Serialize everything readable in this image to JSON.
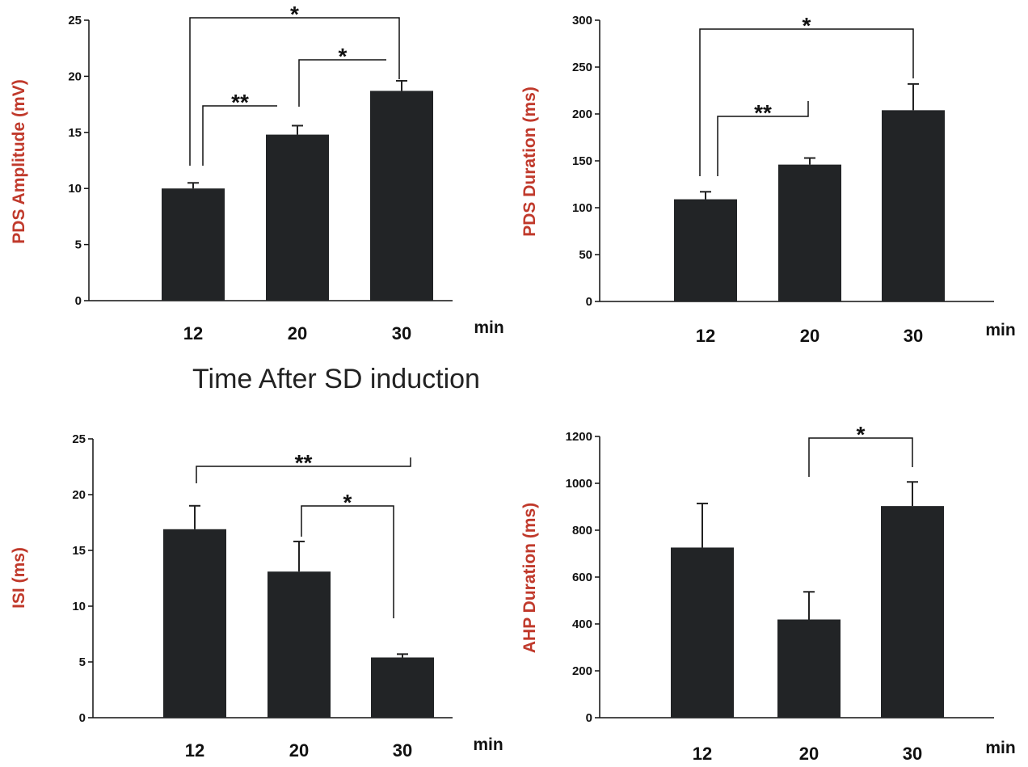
{
  "shared_caption": "Time After SD induction",
  "colors": {
    "bar": "#222426",
    "axis_title": "#c0392b",
    "text": "#111111"
  },
  "chart_data": [
    {
      "type": "bar",
      "ylabel": "PDS Amplitude (mV)",
      "x_unit": "min",
      "categories": [
        "12",
        "20",
        "30"
      ],
      "values": [
        10,
        14.8,
        18.7
      ],
      "errors": [
        0.5,
        0.8,
        0.9
      ],
      "ylim": [
        0,
        25
      ],
      "yticks": [
        0,
        5,
        10,
        15,
        20,
        25
      ],
      "grid": false,
      "significance": [
        {
          "from": 0,
          "to": 2,
          "label": "*"
        },
        {
          "from": 0,
          "to": 1,
          "label": "**"
        },
        {
          "from": 1,
          "to": 2,
          "label": "*"
        }
      ]
    },
    {
      "type": "bar",
      "ylabel": "PDS Duration (ms)",
      "x_unit": "min",
      "categories": [
        "12",
        "20",
        "30"
      ],
      "values": [
        109,
        146,
        204
      ],
      "errors": [
        8,
        7,
        28
      ],
      "ylim": [
        0,
        300
      ],
      "yticks": [
        0,
        50,
        100,
        150,
        200,
        250,
        300
      ],
      "grid": false,
      "significance": [
        {
          "from": 0,
          "to": 2,
          "label": "*"
        },
        {
          "from": 0,
          "to": 1,
          "label": "**"
        }
      ]
    },
    {
      "type": "bar",
      "ylabel": "ISI (ms)",
      "x_unit": "min",
      "categories": [
        "12",
        "20",
        "30"
      ],
      "values": [
        16.9,
        13.1,
        5.4
      ],
      "errors": [
        2.1,
        2.7,
        0.3
      ],
      "ylim": [
        0,
        25
      ],
      "yticks": [
        0,
        5,
        10,
        15,
        20,
        25
      ],
      "grid": false,
      "significance": [
        {
          "from": 0,
          "to": 2,
          "label": "**"
        },
        {
          "from": 1,
          "to": 2,
          "label": "*"
        }
      ]
    },
    {
      "type": "bar",
      "ylabel": "AHP Duration (ms)",
      "x_unit": "min",
      "categories": [
        "12",
        "20",
        "30"
      ],
      "values": [
        726,
        419,
        903
      ],
      "errors": [
        188,
        118,
        103
      ],
      "ylim": [
        0,
        1200
      ],
      "yticks": [
        0,
        200,
        400,
        600,
        800,
        1000,
        1200
      ],
      "grid": false,
      "significance": [
        {
          "from": 1,
          "to": 2,
          "label": "*"
        }
      ]
    }
  ]
}
